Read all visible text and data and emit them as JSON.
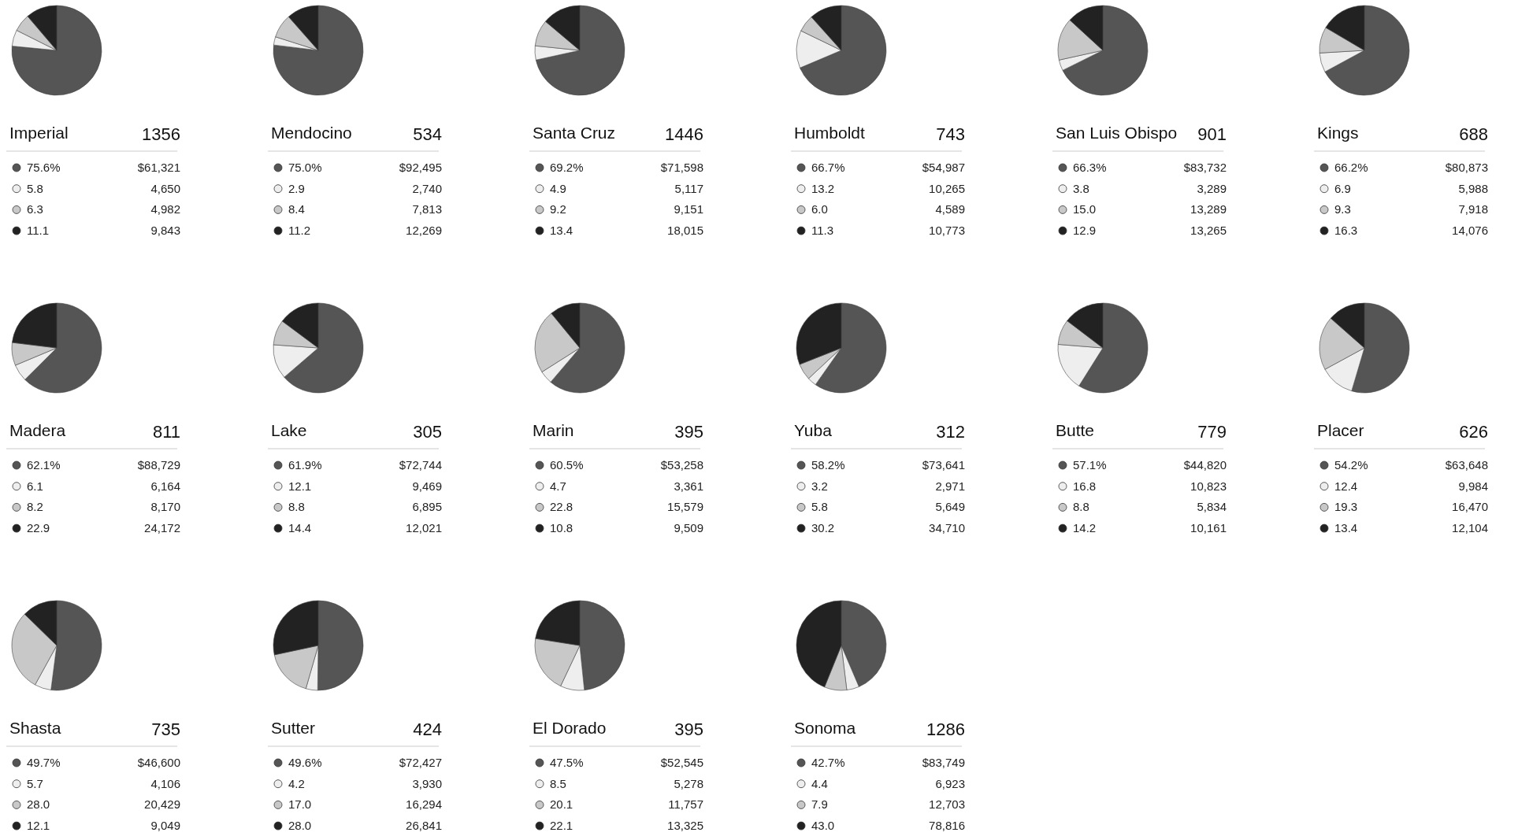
{
  "chart_data": [
    {
      "type": "pie",
      "title": "Imperial",
      "categories": [
        "75.6%",
        "5.8",
        "6.3",
        "11.1"
      ],
      "values": [
        75.6,
        5.8,
        6.3,
        11.1
      ],
      "legend": "bottom",
      "colors": [
        "#555555",
        "#eeeeee",
        "#c8c8c8",
        "#222222"
      ],
      "annotations": [
        "1356",
        "$61,321",
        "4,650",
        "4,982",
        "9,843"
      ]
    },
    {
      "type": "pie",
      "title": "Mendocino",
      "categories": [
        "75.0%",
        "2.9",
        "8.4",
        "11.2"
      ],
      "values": [
        75.0,
        2.9,
        8.4,
        11.2
      ],
      "legend": "bottom",
      "colors": [
        "#555555",
        "#eeeeee",
        "#c8c8c8",
        "#222222"
      ],
      "annotations": [
        "534",
        "$92,495",
        "2,740",
        "7,813",
        "12,269"
      ]
    },
    {
      "type": "pie",
      "title": "Santa Cruz",
      "categories": [
        "69.2%",
        "4.9",
        "9.2",
        "13.4"
      ],
      "values": [
        69.2,
        4.9,
        9.2,
        13.4
      ],
      "legend": "bottom",
      "colors": [
        "#555555",
        "#eeeeee",
        "#c8c8c8",
        "#222222"
      ],
      "annotations": [
        "1446",
        "$71,598",
        "5,117",
        "9,151",
        "18,015"
      ]
    },
    {
      "type": "pie",
      "title": "Humboldt",
      "categories": [
        "66.7%",
        "13.2",
        "6.0",
        "11.3"
      ],
      "values": [
        66.7,
        13.2,
        6.0,
        11.3
      ],
      "legend": "bottom",
      "colors": [
        "#555555",
        "#eeeeee",
        "#c8c8c8",
        "#222222"
      ],
      "annotations": [
        "743",
        "$54,987",
        "10,265",
        "4,589",
        "10,773"
      ]
    },
    {
      "type": "pie",
      "title": "San Luis Obispo",
      "categories": [
        "66.3%",
        "3.8",
        "15.0",
        "12.9"
      ],
      "values": [
        66.3,
        3.8,
        15.0,
        12.9
      ],
      "legend": "bottom",
      "colors": [
        "#555555",
        "#eeeeee",
        "#c8c8c8",
        "#222222"
      ],
      "annotations": [
        "901",
        "$83,732",
        "3,289",
        "13,289",
        "13,265"
      ]
    },
    {
      "type": "pie",
      "title": "Kings",
      "categories": [
        "66.2%",
        "6.9",
        "9.3",
        "16.3"
      ],
      "values": [
        66.2,
        6.9,
        9.3,
        16.3
      ],
      "legend": "bottom",
      "colors": [
        "#555555",
        "#eeeeee",
        "#c8c8c8",
        "#222222"
      ],
      "annotations": [
        "688",
        "$80,873",
        "5,988",
        "7,918",
        "14,076"
      ]
    },
    {
      "type": "pie",
      "title": "Madera",
      "categories": [
        "62.1%",
        "6.1",
        "8.2",
        "22.9"
      ],
      "values": [
        62.1,
        6.1,
        8.2,
        22.9
      ],
      "legend": "bottom",
      "colors": [
        "#555555",
        "#eeeeee",
        "#c8c8c8",
        "#222222"
      ],
      "annotations": [
        "811",
        "$88,729",
        "6,164",
        "8,170",
        "24,172"
      ]
    },
    {
      "type": "pie",
      "title": "Lake",
      "categories": [
        "61.9%",
        "12.1",
        "8.8",
        "14.4"
      ],
      "values": [
        61.9,
        12.1,
        8.8,
        14.4
      ],
      "legend": "bottom",
      "colors": [
        "#555555",
        "#eeeeee",
        "#c8c8c8",
        "#222222"
      ],
      "annotations": [
        "305",
        "$72,744",
        "9,469",
        "6,895",
        "12,021"
      ]
    },
    {
      "type": "pie",
      "title": "Marin",
      "categories": [
        "60.5%",
        "4.7",
        "22.8",
        "10.8"
      ],
      "values": [
        60.5,
        4.7,
        22.8,
        10.8
      ],
      "legend": "bottom",
      "colors": [
        "#555555",
        "#eeeeee",
        "#c8c8c8",
        "#222222"
      ],
      "annotations": [
        "395",
        "$53,258",
        "3,361",
        "15,579",
        "9,509"
      ]
    },
    {
      "type": "pie",
      "title": "Yuba",
      "categories": [
        "58.2%",
        "3.2",
        "5.8",
        "30.2"
      ],
      "values": [
        58.2,
        3.2,
        5.8,
        30.2
      ],
      "legend": "bottom",
      "colors": [
        "#555555",
        "#eeeeee",
        "#c8c8c8",
        "#222222"
      ],
      "annotations": [
        "312",
        "$73,641",
        "2,971",
        "5,649",
        "34,710"
      ]
    },
    {
      "type": "pie",
      "title": "Butte",
      "categories": [
        "57.1%",
        "16.8",
        "8.8",
        "14.2"
      ],
      "values": [
        57.1,
        16.8,
        8.8,
        14.2
      ],
      "legend": "bottom",
      "colors": [
        "#555555",
        "#eeeeee",
        "#c8c8c8",
        "#222222"
      ],
      "annotations": [
        "779",
        "$44,820",
        "10,823",
        "5,834",
        "10,161"
      ]
    },
    {
      "type": "pie",
      "title": "Placer",
      "categories": [
        "54.2%",
        "12.4",
        "19.3",
        "13.4"
      ],
      "values": [
        54.2,
        12.4,
        19.3,
        13.4
      ],
      "legend": "bottom",
      "colors": [
        "#555555",
        "#eeeeee",
        "#c8c8c8",
        "#222222"
      ],
      "annotations": [
        "626",
        "$63,648",
        "9,984",
        "16,470",
        "12,104"
      ]
    },
    {
      "type": "pie",
      "title": "Shasta",
      "categories": [
        "49.7%",
        "5.7",
        "28.0",
        "12.1"
      ],
      "values": [
        49.7,
        5.7,
        28.0,
        12.1
      ],
      "legend": "bottom",
      "colors": [
        "#555555",
        "#eeeeee",
        "#c8c8c8",
        "#222222"
      ],
      "annotations": [
        "735",
        "$46,600",
        "4,106",
        "20,429",
        "9,049"
      ]
    },
    {
      "type": "pie",
      "title": "Sutter",
      "categories": [
        "49.6%",
        "4.2",
        "17.0",
        "28.0"
      ],
      "values": [
        49.6,
        4.2,
        17.0,
        28.0
      ],
      "legend": "bottom",
      "colors": [
        "#555555",
        "#eeeeee",
        "#c8c8c8",
        "#222222"
      ],
      "annotations": [
        "424",
        "$72,427",
        "3,930",
        "16,294",
        "26,841"
      ]
    },
    {
      "type": "pie",
      "title": "El Dorado",
      "categories": [
        "47.5%",
        "8.5",
        "20.1",
        "22.1"
      ],
      "values": [
        47.5,
        8.5,
        20.1,
        22.1
      ],
      "legend": "bottom",
      "colors": [
        "#555555",
        "#eeeeee",
        "#c8c8c8",
        "#222222"
      ],
      "annotations": [
        "395",
        "$52,545",
        "5,278",
        "11,757",
        "13,325"
      ]
    },
    {
      "type": "pie",
      "title": "Sonoma",
      "categories": [
        "42.7%",
        "4.4",
        "7.9",
        "43.0"
      ],
      "values": [
        42.7,
        4.4,
        7.9,
        43.0
      ],
      "legend": "bottom",
      "colors": [
        "#555555",
        "#eeeeee",
        "#c8c8c8",
        "#222222"
      ],
      "annotations": [
        "1286",
        "$83,749",
        "6,923",
        "12,703",
        "78,816"
      ]
    }
  ]
}
